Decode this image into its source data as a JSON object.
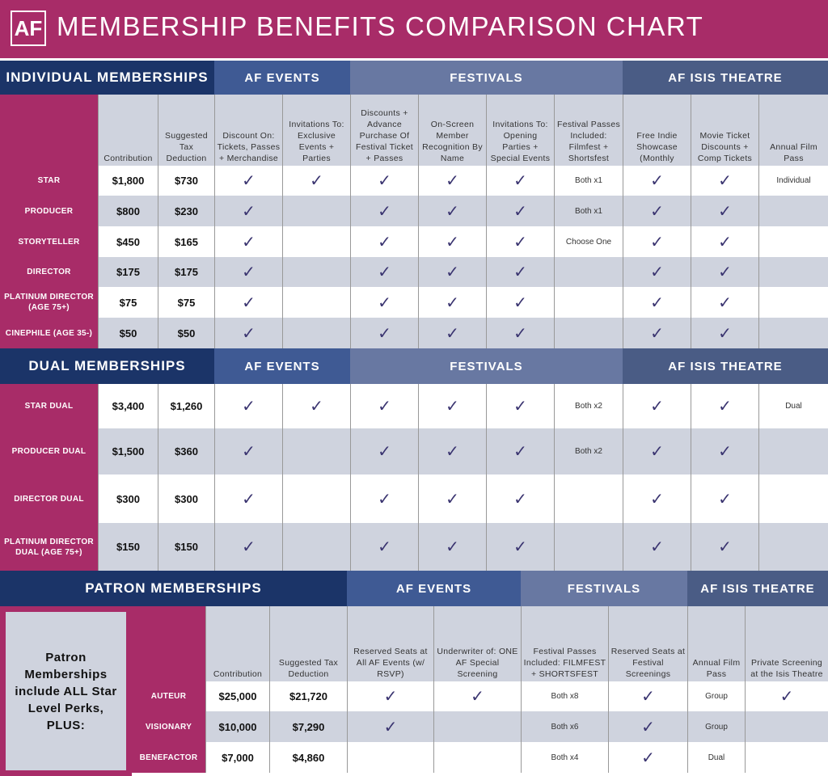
{
  "header": {
    "logo": "AF",
    "title": "MEMBERSHIP BENEFITS COMPARISON CHART"
  },
  "colors": {
    "magenta": "#a82c68",
    "navy": "#1b3468",
    "af_events": "#3f5a94",
    "festivals": "#6878a2",
    "isis": "#4a5c85",
    "check": "#3a3470"
  },
  "individual": {
    "title": "INDIVIDUAL MEMBERSHIPS",
    "groups": [
      "AF EVENTS",
      "FESTIVALS",
      "AF ISIS THEATRE"
    ],
    "columns": [
      "Contribution",
      "Suggested Tax Deduction",
      "Discount On: Tickets, Passes + Merchandise",
      "Invitations To: Exclusive Events + Parties",
      "Discounts + Advance Purchase Of Festival Ticket + Passes",
      "On-Screen Member Recognition By Name",
      "Invitations To: Opening Parties + Special Events",
      "Festival Passes Included: Filmfest + Shortsfest",
      "Free Indie Showcase (Monthly",
      "Movie Ticket Discounts + Comp Tickets",
      "Annual Film Pass"
    ],
    "rows": [
      {
        "name": "STAR",
        "cells": [
          "$1,800",
          "$730",
          true,
          true,
          true,
          true,
          true,
          "Both x1",
          true,
          true,
          "Individual"
        ]
      },
      {
        "name": "PRODUCER",
        "cells": [
          "$800",
          "$230",
          true,
          false,
          true,
          true,
          true,
          "Both x1",
          true,
          true,
          ""
        ]
      },
      {
        "name": "STORYTELLER",
        "cells": [
          "$450",
          "$165",
          true,
          false,
          true,
          true,
          true,
          "Choose One",
          true,
          true,
          ""
        ]
      },
      {
        "name": "DIRECTOR",
        "cells": [
          "$175",
          "$175",
          true,
          false,
          true,
          true,
          true,
          "",
          true,
          true,
          ""
        ]
      },
      {
        "name": "PLATINUM DIRECTOR (AGE 75+)",
        "cells": [
          "$75",
          "$75",
          true,
          false,
          true,
          true,
          true,
          "",
          true,
          true,
          ""
        ]
      },
      {
        "name": "CINEPHILE (AGE 35-)",
        "cells": [
          "$50",
          "$50",
          true,
          false,
          true,
          true,
          true,
          "",
          true,
          true,
          ""
        ]
      }
    ]
  },
  "dual": {
    "title": "DUAL MEMBERSHIPS",
    "groups": [
      "AF EVENTS",
      "FESTIVALS",
      "AF ISIS THEATRE"
    ],
    "rows": [
      {
        "name": "STAR DUAL",
        "cells": [
          "$3,400",
          "$1,260",
          true,
          true,
          true,
          true,
          true,
          "Both x2",
          true,
          true,
          "Dual"
        ]
      },
      {
        "name": "PRODUCER DUAL",
        "cells": [
          "$1,500",
          "$360",
          true,
          false,
          true,
          true,
          true,
          "Both x2",
          true,
          true,
          ""
        ]
      },
      {
        "name": "DIRECTOR DUAL",
        "cells": [
          "$300",
          "$300",
          true,
          false,
          true,
          true,
          true,
          "",
          true,
          true,
          ""
        ]
      },
      {
        "name": "PLATINUM DIRECTOR DUAL (AGE 75+)",
        "cells": [
          "$150",
          "$150",
          true,
          false,
          true,
          true,
          true,
          "",
          true,
          true,
          ""
        ]
      }
    ]
  },
  "patron": {
    "title": "PATRON MEMBERSHIPS",
    "groups": [
      "AF EVENTS",
      "FESTIVALS",
      "AF ISIS THEATRE"
    ],
    "note": "Patron Memberships include ALL Star Level Perks, PLUS:",
    "columns": [
      "Contribution",
      "Suggested Tax Deduction",
      "Reserved Seats at All AF Events (w/ RSVP)",
      "Underwriter of: ONE AF Special Screening",
      "Festival Passes Included: FILMFEST + SHORTSFEST",
      "Reserved Seats at Festival Screenings",
      "Annual Film Pass",
      "Private Screening at the Isis Theatre"
    ],
    "rows": [
      {
        "name": "AUTEUR",
        "cells": [
          "$25,000",
          "$21,720",
          true,
          true,
          "Both x8",
          true,
          "Group",
          true
        ]
      },
      {
        "name": "VISIONARY",
        "cells": [
          "$10,000",
          "$7,290",
          true,
          false,
          "Both x6",
          true,
          "Group",
          false
        ]
      },
      {
        "name": "BENEFACTOR",
        "cells": [
          "$7,000",
          "$4,860",
          false,
          false,
          "Both x4",
          true,
          "Dual",
          false
        ]
      }
    ]
  }
}
